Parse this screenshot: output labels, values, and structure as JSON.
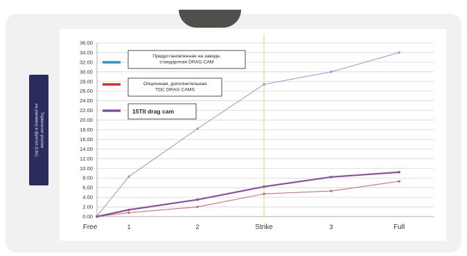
{
  "chart_data": {
    "type": "line",
    "title": "",
    "xlabel": "",
    "ylabel": "Тормозное усилие\nна ранжину в фунтах (Lbs)",
    "categories": [
      "Free",
      "1",
      "2",
      "Strike",
      "3",
      "Full"
    ],
    "ylim": [
      0,
      36
    ],
    "y_ticks": [
      "0.00",
      "2.00",
      "4.00",
      "6.00",
      "8.00",
      "10.00",
      "12.00",
      "14.00",
      "16.00",
      "18.00",
      "20.00",
      "22.00",
      "24.00",
      "26.00",
      "28.00",
      "30.00",
      "32.00",
      "34.00",
      "36.00"
    ],
    "grid": true,
    "legend_placement": "top-left",
    "strike_marker_color": "#d9d98c",
    "series": [
      {
        "name": "Предустановленная на заводе, стандартная DRAG CAM",
        "legend_text": [
          "Предустановленная на заводе,",
          "стандартная DRAG CAM"
        ],
        "color": "#8fa3d6",
        "legend_color": "#2f8fd0",
        "values": [
          0.1,
          8.3,
          18.2,
          27.4,
          30.0,
          34.0
        ]
      },
      {
        "name": "Опционная, дополнительная TDC DRAG CAMS",
        "legend_text": [
          "Опционная, дополнительная",
          "TDC DRAG CAMS"
        ],
        "color": "#c9716f",
        "legend_color": "#e12a27",
        "values": [
          0.0,
          0.8,
          2.0,
          4.7,
          5.3,
          7.3
        ]
      },
      {
        "name": "15TII drag cam",
        "legend_text": [
          "15TII drag cam"
        ],
        "color": "#8a4ea3",
        "legend_color": "#8a4ea3",
        "values": [
          0.0,
          1.4,
          3.5,
          6.2,
          8.2,
          9.2
        ]
      }
    ]
  }
}
